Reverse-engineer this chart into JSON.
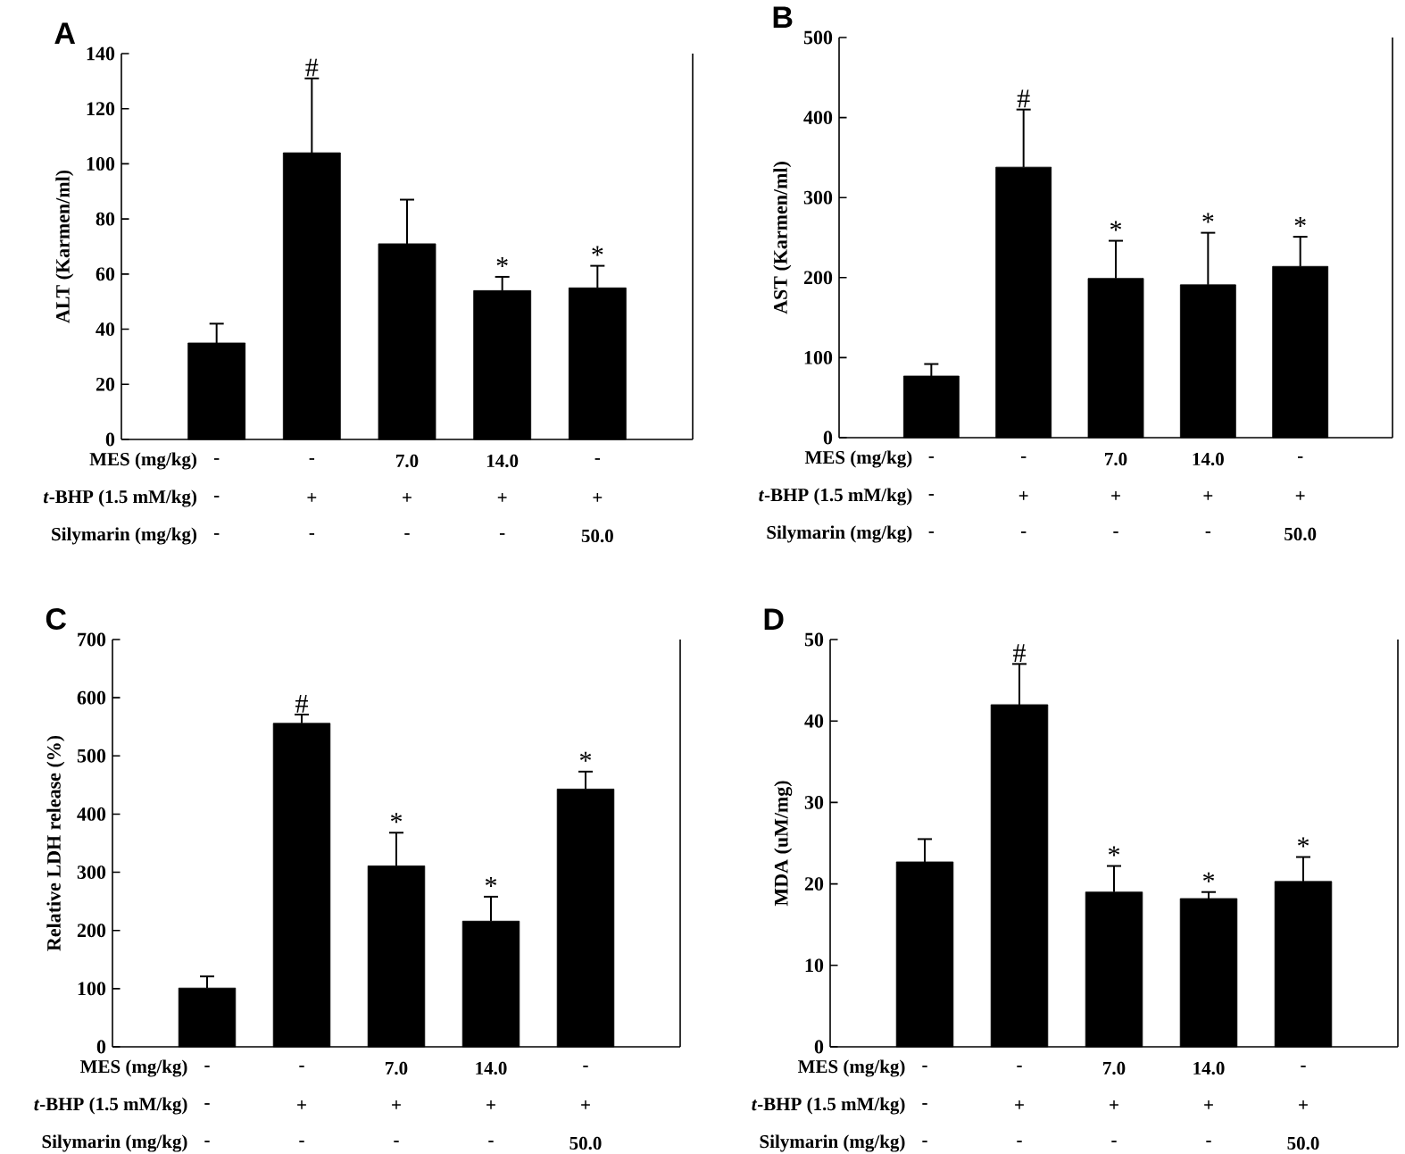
{
  "chart_data": [
    {
      "type": "bar",
      "title": "A",
      "ylabel": "ALT (Karmen/ml)",
      "categories": [
        null,
        null,
        null,
        null,
        null
      ],
      "values": [
        35,
        104,
        71,
        54,
        55
      ],
      "errors": [
        7,
        27,
        16,
        5,
        8
      ],
      "value_labels": [
        null,
        "#",
        null,
        "*",
        "*"
      ],
      "color": "#000000",
      "ylim": [
        0,
        140
      ],
      "yticks": [
        0,
        20,
        40,
        60,
        80,
        100,
        120,
        140
      ],
      "annotations": [
        "MES (mg/kg)",
        "-",
        "-",
        "7.0",
        "14.0",
        "-",
        "*t*-BHP (1.5 mM/kg)",
        "-",
        "+",
        "+",
        "+",
        "+",
        "Silymarin (mg/kg)",
        "-",
        "-",
        "-",
        "-",
        "50.0"
      ]
    },
    {
      "type": "bar",
      "title": "B",
      "ylabel": "AST (Karmen/ml)",
      "categories": [
        null,
        null,
        null,
        null,
        null
      ],
      "values": [
        77,
        338,
        199,
        191,
        214
      ],
      "errors": [
        15,
        72,
        47,
        65,
        37
      ],
      "value_labels": [
        null,
        "#",
        "*",
        "*",
        "*"
      ],
      "color": "#000000",
      "ylim": [
        0,
        500
      ],
      "yticks": [
        0,
        100,
        200,
        300,
        400,
        500
      ],
      "annotations": [
        "MES (mg/kg)",
        "-",
        "-",
        "7.0",
        "14.0",
        "-",
        "*t*-BHP (1.5 mM/kg)",
        "-",
        "+",
        "+",
        "+",
        "+",
        "Silymarin (mg/kg)",
        "-",
        "-",
        "-",
        "-",
        "50.0"
      ]
    },
    {
      "type": "bar",
      "title": "C",
      "ylabel": "Relative LDH release (%)",
      "categories": [
        null,
        null,
        null,
        null,
        null
      ],
      "values": [
        101,
        556,
        311,
        216,
        443
      ],
      "errors": [
        20,
        15,
        57,
        42,
        30
      ],
      "value_labels": [
        null,
        "#",
        "*",
        "*",
        "*"
      ],
      "color": "#000000",
      "ylim": [
        0,
        700
      ],
      "yticks": [
        0,
        100,
        200,
        300,
        400,
        500,
        600,
        700
      ],
      "annotations": [
        "MES (mg/kg)",
        "-",
        "-",
        "7.0",
        "14.0",
        "-",
        "*t*-BHP (1.5 mM/kg)",
        "-",
        "+",
        "+",
        "+",
        "+",
        "Silymarin (mg/kg)",
        "-",
        "-",
        "-",
        "-",
        "50.0"
      ]
    },
    {
      "type": "bar",
      "title": "D",
      "ylabel": "MDA (uM/mg)",
      "categories": [
        null,
        null,
        null,
        null,
        null
      ],
      "values": [
        22.7,
        42,
        19,
        18.2,
        20.3
      ],
      "errors": [
        2.8,
        5,
        3.2,
        0.8,
        3
      ],
      "value_labels": [
        null,
        "#",
        "*",
        "*",
        "*"
      ],
      "color": "#000000",
      "ylim": [
        0,
        50
      ],
      "yticks": [
        0,
        10,
        20,
        30,
        40,
        50
      ],
      "annotations": [
        "MES (mg/kg)",
        "-",
        "-",
        "7.0",
        "14.0",
        "-",
        "*t*-BHP (1.5 mM/kg)",
        "-",
        "+",
        "+",
        "+",
        "+",
        "Silymarin (mg/kg)",
        "-",
        "-",
        "-",
        "-",
        "50.0"
      ]
    }
  ]
}
